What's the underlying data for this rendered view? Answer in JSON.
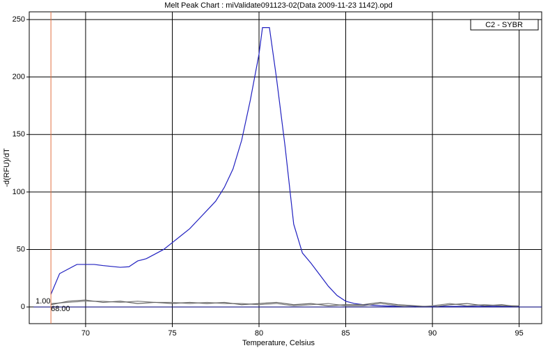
{
  "chart_data": {
    "type": "line",
    "title": "Melt Peak Chart : miValidate091123-02(Data 2009-11-23 1142).opd",
    "x_label": "Temperature, Celsius",
    "y_label": "-d(RFU)/dT",
    "xlim": [
      66.75,
      96.3
    ],
    "xticks": [
      70,
      75,
      80,
      85,
      90,
      95
    ],
    "ylim": [
      -14.5,
      256.7
    ],
    "yticks": [
      0,
      50,
      100,
      150,
      200,
      250
    ],
    "grid": true,
    "legend": "top-right",
    "cursor": {
      "value": 68,
      "label": "68.00",
      "y_label": "1.00",
      "color": "#e07040"
    },
    "series": [
      {
        "name": "C2 - SYBR",
        "color": "#2020c0",
        "x": [
          68,
          68.5,
          69.5,
          70.5,
          71,
          72,
          72.5,
          73,
          73.5,
          74,
          74.5,
          75,
          75.5,
          76,
          76.5,
          77,
          77.5,
          78,
          78.5,
          79,
          79.5,
          80,
          80.2,
          80.6,
          81,
          81.5,
          82,
          82.5,
          83,
          83.5,
          84,
          84.5,
          85,
          85.5,
          86,
          87,
          88,
          90,
          95
        ],
        "values": [
          11,
          29,
          37,
          37,
          36,
          34.5,
          35,
          40,
          42,
          46,
          50,
          56,
          62,
          68,
          76,
          84,
          92,
          104,
          120,
          145,
          180,
          220,
          243,
          243,
          200,
          140,
          72,
          47,
          38,
          28,
          18,
          10,
          5,
          3,
          2,
          1,
          0.5,
          0.5,
          0.5
        ]
      },
      {
        "color": "#808080",
        "x": [
          68,
          69,
          70,
          71,
          72,
          73,
          74,
          75,
          76,
          77,
          78,
          79,
          80,
          81,
          82,
          83,
          84,
          85,
          86,
          87,
          88,
          89,
          90,
          91,
          92,
          93,
          94,
          95
        ],
        "values": [
          3,
          4,
          5,
          5,
          4,
          5,
          4,
          4,
          3,
          4,
          3,
          3,
          2,
          3,
          1,
          2,
          3,
          1,
          1,
          3,
          1,
          0,
          1,
          3,
          1,
          2,
          1,
          1
        ]
      },
      {
        "color": "#606060",
        "x": [
          68,
          69,
          70,
          71,
          72,
          73,
          74,
          75,
          76,
          77,
          78,
          79,
          80,
          81,
          82,
          83,
          84,
          85,
          86,
          87,
          88,
          89,
          90,
          91,
          92,
          93,
          94,
          95
        ],
        "values": [
          2,
          5,
          6,
          4,
          5,
          3,
          4,
          3,
          4,
          3,
          4,
          2,
          3,
          4,
          2,
          3,
          1,
          2,
          2,
          4,
          2,
          1,
          0,
          2,
          3,
          1,
          2,
          0
        ]
      },
      {
        "color": "#101080",
        "x": [
          67,
          96.3
        ],
        "values": [
          0,
          0
        ]
      }
    ]
  }
}
